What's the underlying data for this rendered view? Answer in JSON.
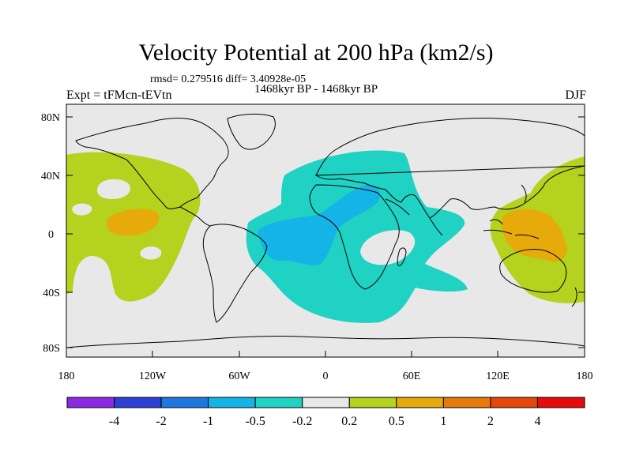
{
  "header": {
    "title": "Velocity Potential at 200 hPa (km2/s)",
    "stats": "rmsd= 0.279516 diff= 3.40928e-05",
    "period": "1468kyr BP - 1468kyr BP",
    "experiment": "Expt = tFMcn-tEVtn",
    "season": "DJF"
  },
  "map": {
    "lat_labels": [
      "80N",
      "40N",
      "0",
      "40S",
      "80S"
    ],
    "lon_labels": [
      "180",
      "120W",
      "60W",
      "0",
      "60E",
      "120E",
      "180"
    ],
    "background_color": "#e8e8e8",
    "coast_color": "#000000"
  },
  "colorbar": {
    "colors": [
      "#8a2be2",
      "#2e3fd6",
      "#1e78e0",
      "#14b4e6",
      "#20d2c4",
      "#e8e8e8",
      "#b4d21e",
      "#e6aa0a",
      "#e67a0a",
      "#e6460a",
      "#e60a0a"
    ],
    "labels": [
      "-4",
      "-2",
      "-1",
      "-0.5",
      "-0.2",
      "0.2",
      "0.5",
      "1",
      "2",
      "4"
    ]
  }
}
